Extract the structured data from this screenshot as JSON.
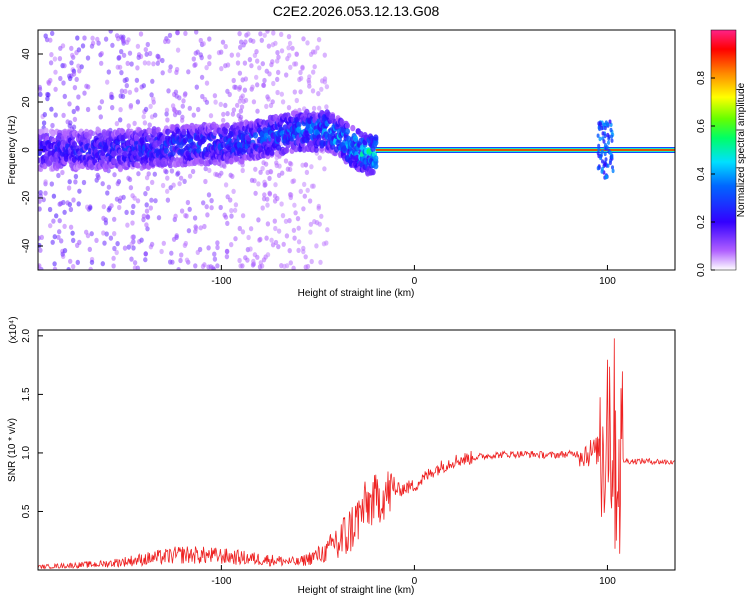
{
  "page_title": "C2E2.2026.053.12.13.G08",
  "colors": {
    "snr_line": "#ee2222",
    "frame": "#000000",
    "spectrogram_background": "#ffffff"
  },
  "chart_data": [
    {
      "type": "heatmap",
      "title": "C2E2.2026.053.12.13.G08",
      "xlabel": "Height of straight line (km)",
      "ylabel": "Frequency (Hz)",
      "xlim": [
        -195,
        135
      ],
      "ylim": [
        -50,
        50
      ],
      "xticks": [
        -100,
        0,
        100
      ],
      "yticks": [
        -40,
        -20,
        0,
        20,
        40
      ],
      "grid": false,
      "colorbar": {
        "label": "Normalized spectral amplitude",
        "range": [
          0,
          1
        ],
        "ticks": [
          0.0,
          0.2,
          0.4,
          0.6,
          0.8
        ],
        "colormap": "rainbow (white-violet-blue-cyan-green-yellow-red-pink)"
      },
      "ridge": [
        {
          "x": -195,
          "freq": 0,
          "amp": 0.25
        },
        {
          "x": -150,
          "freq": 0,
          "amp": 0.3
        },
        {
          "x": -120,
          "freq": 2,
          "amp": 0.35
        },
        {
          "x": -90,
          "freq": 3,
          "amp": 0.35
        },
        {
          "x": -60,
          "freq": 8,
          "amp": 0.4
        },
        {
          "x": -45,
          "freq": 8,
          "amp": 0.45
        },
        {
          "x": -35,
          "freq": 3,
          "amp": 0.5
        },
        {
          "x": -25,
          "freq": -2,
          "amp": 0.55
        },
        {
          "x": -15,
          "freq": 0,
          "amp": 0.7
        },
        {
          "x": 0,
          "freq": 0,
          "amp": 0.95
        },
        {
          "x": 95,
          "freq": 0,
          "amp": 0.95
        },
        {
          "x": 100,
          "freq": 0,
          "amp": 0.8
        },
        {
          "x": 135,
          "freq": 0,
          "amp": 0.95
        }
      ]
    },
    {
      "type": "line",
      "xlabel": "Height of straight line (km)",
      "ylabel": "SNR (10 * v/v)",
      "y_multiplier": "(x10⁴)",
      "xlim": [
        -195,
        135
      ],
      "ylim": [
        0,
        2.05
      ],
      "xticks": [
        -100,
        0,
        100
      ],
      "yticks": [
        0.5,
        1.0,
        1.5,
        2.0
      ],
      "grid": false,
      "series": [
        {
          "x": [
            -195,
            -160,
            -140,
            -120,
            -100,
            -80,
            -60,
            -45,
            -35,
            -25,
            -20,
            -15,
            -10,
            0,
            10,
            20,
            30,
            40,
            50,
            60,
            70,
            80,
            90,
            95,
            98,
            100,
            102,
            105,
            110,
            120,
            135
          ],
          "values": [
            0.02,
            0.04,
            0.07,
            0.1,
            0.09,
            0.07,
            0.05,
            0.12,
            0.3,
            0.55,
            0.6,
            0.65,
            0.68,
            0.72,
            0.85,
            0.93,
            0.96,
            0.98,
            0.99,
            0.99,
            0.98,
            0.99,
            1.0,
            1.02,
            1.1,
            1.5,
            1.2,
            0.95,
            0.93,
            0.93,
            0.92
          ]
        }
      ]
    }
  ]
}
